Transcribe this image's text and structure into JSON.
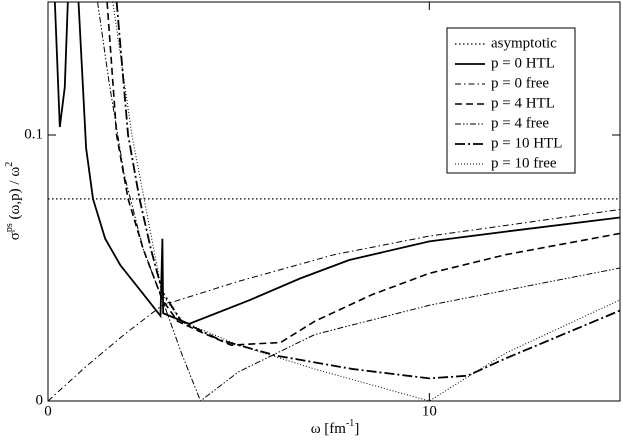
{
  "chart_data": {
    "type": "line",
    "xlabel": [
      "ω [fm",
      "-1",
      "]"
    ],
    "ylabel": [
      "σ",
      "ps",
      " (ω,p) / ω",
      "2"
    ],
    "xlim": [
      0,
      15
    ],
    "ylim": [
      0,
      0.15
    ],
    "xticks": [
      0,
      10
    ],
    "yticks": [
      0,
      0.1
    ],
    "legend": "upper right",
    "series": [
      {
        "name": "asymptotic",
        "color": "#000000",
        "dash": "1.5 2.5",
        "width": 1.2,
        "x": [
          0,
          15
        ],
        "values": [
          0.076,
          0.076
        ]
      },
      {
        "name": "p = 0 HTL",
        "color": "#000000",
        "dash": "none",
        "width": 1.8,
        "x": [
          0.18,
          0.31,
          0.44,
          0.52,
          null,
          0.8,
          1.0,
          1.18,
          1.5,
          1.9,
          2.4,
          2.95,
          3.0,
          3.02,
          3.7,
          5.3,
          6.6,
          7.9,
          10,
          11.9,
          15
        ],
        "values": [
          0.15,
          0.103,
          0.118,
          0.15,
          null,
          0.15,
          0.095,
          0.076,
          0.061,
          0.051,
          0.042,
          0.032,
          0.061,
          0.033,
          0.029,
          0.038,
          0.046,
          0.053,
          0.06,
          0.0635,
          0.069
        ]
      },
      {
        "name": "p = 0 free",
        "color": "#000000",
        "dash": "6 3 1.5 3",
        "width": 1,
        "x": [
          0,
          1,
          2,
          3,
          5,
          7.5,
          10,
          12.5,
          15
        ],
        "values": [
          0,
          0.013,
          0.025,
          0.036,
          0.045,
          0.055,
          0.062,
          0.067,
          0.072
        ]
      },
      {
        "name": "p = 4 HTL",
        "color": "#000000",
        "dash": "7 4",
        "width": 1.6,
        "x": [
          1.55,
          1.8,
          2.1,
          2.5,
          3,
          3.4,
          4,
          4.8,
          6.1,
          7,
          8.5,
          10,
          12,
          15
        ],
        "values": [
          0.15,
          0.1,
          0.076,
          0.057,
          0.038,
          0.03,
          0.026,
          0.021,
          0.022,
          0.03,
          0.04,
          0.048,
          0.055,
          0.063
        ]
      },
      {
        "name": "p = 4 free",
        "color": "#000000",
        "dash": "6 2 1.5 2 1.5 2",
        "width": 1,
        "x": [
          1.3,
          1.6,
          2.0,
          2.5,
          3,
          3.5,
          4,
          5,
          7,
          10,
          12.5,
          15
        ],
        "values": [
          0.15,
          0.12,
          0.085,
          0.057,
          0.038,
          0.018,
          0,
          0.011,
          0.025,
          0.036,
          0.043,
          0.05
        ]
      },
      {
        "name": "p = 10 HTL",
        "color": "#000000",
        "dash": "10 3 2 3",
        "width": 1.8,
        "x": [
          1.8,
          2.1,
          2.4,
          2.7,
          3,
          3.5,
          4.5,
          6,
          8,
          10,
          11,
          12,
          15
        ],
        "values": [
          0.15,
          0.1,
          0.076,
          0.057,
          0.041,
          0.03,
          0.023,
          0.017,
          0.012,
          0.0085,
          0.0095,
          0.016,
          0.034
        ]
      },
      {
        "name": "p = 10 free",
        "color": "#000000",
        "dash": "1 2",
        "width": 1,
        "x": [
          1.7,
          2.2,
          2.6,
          3,
          3.5,
          5,
          7,
          10,
          12,
          15
        ],
        "values": [
          0.15,
          0.1,
          0.07,
          0.04,
          0.03,
          0.021,
          0.012,
          0,
          0.018,
          0.038
        ]
      }
    ]
  }
}
